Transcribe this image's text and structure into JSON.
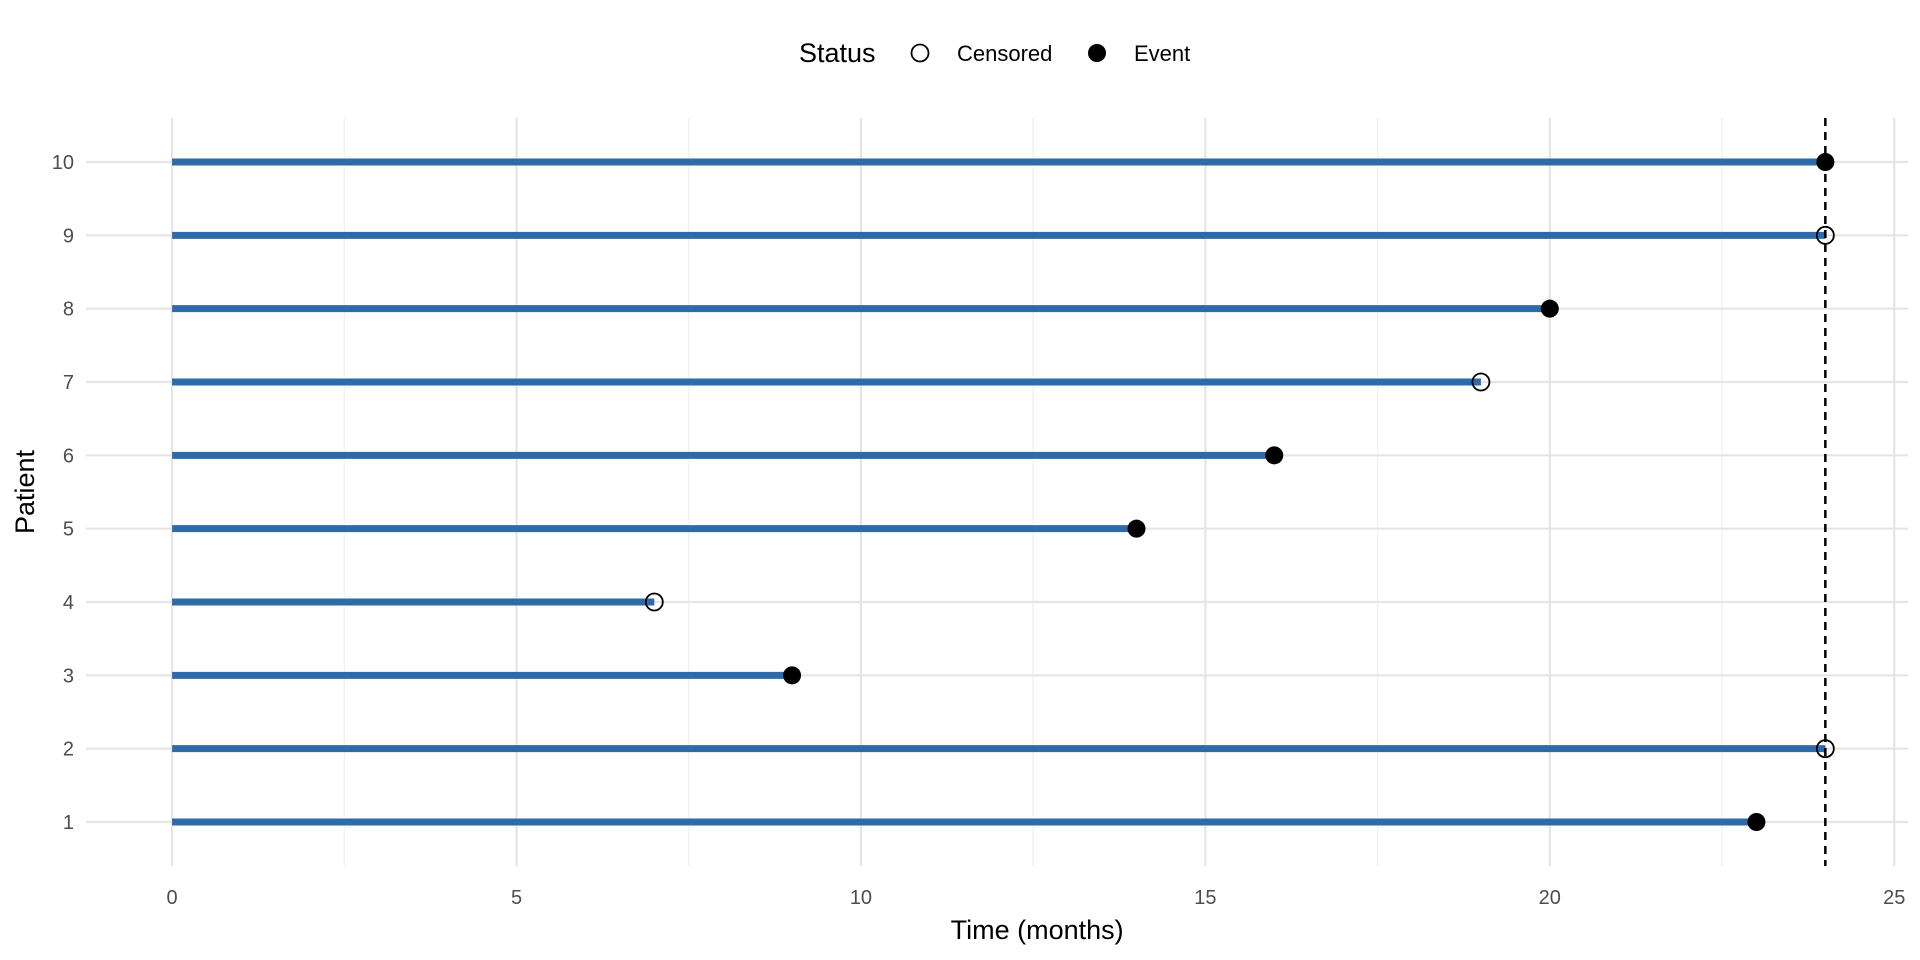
{
  "chart_data": {
    "type": "swimmer",
    "xlabel": "Time (months)",
    "ylabel": "Patient",
    "xlim": [
      -1.25,
      25.2
    ],
    "ylim": [
      0.4,
      10.6
    ],
    "x_ticks": [
      0,
      5,
      10,
      15,
      20,
      25
    ],
    "x_minor_ticks": [
      2.5,
      7.5,
      12.5,
      17.5,
      22.5
    ],
    "y_ticks": [
      1,
      2,
      3,
      4,
      5,
      6,
      7,
      8,
      9,
      10
    ],
    "grid": true,
    "reference_line": {
      "x": 24,
      "style": "dashed"
    },
    "legend": {
      "title": "Status",
      "position": "top",
      "entries": [
        {
          "label": "Censored",
          "marker": "open-circle"
        },
        {
          "label": "Event",
          "marker": "filled-circle"
        }
      ]
    },
    "colors": {
      "bar": "#2e6aa8",
      "marker": "#000000",
      "grid_major": "#e5e5e5",
      "grid_minor": "#f1f1f1",
      "reference_line": "#000000"
    },
    "patients": [
      {
        "id": 1,
        "start": 0,
        "end": 23,
        "status": "Event"
      },
      {
        "id": 2,
        "start": 0,
        "end": 24,
        "status": "Censored"
      },
      {
        "id": 3,
        "start": 0,
        "end": 9,
        "status": "Event"
      },
      {
        "id": 4,
        "start": 0,
        "end": 7,
        "status": "Censored"
      },
      {
        "id": 5,
        "start": 0,
        "end": 14,
        "status": "Event"
      },
      {
        "id": 6,
        "start": 0,
        "end": 16,
        "status": "Event"
      },
      {
        "id": 7,
        "start": 0,
        "end": 19,
        "status": "Censored"
      },
      {
        "id": 8,
        "start": 0,
        "end": 20,
        "status": "Event"
      },
      {
        "id": 9,
        "start": 0,
        "end": 24,
        "status": "Censored"
      },
      {
        "id": 10,
        "start": 0,
        "end": 24,
        "status": "Event"
      }
    ]
  }
}
